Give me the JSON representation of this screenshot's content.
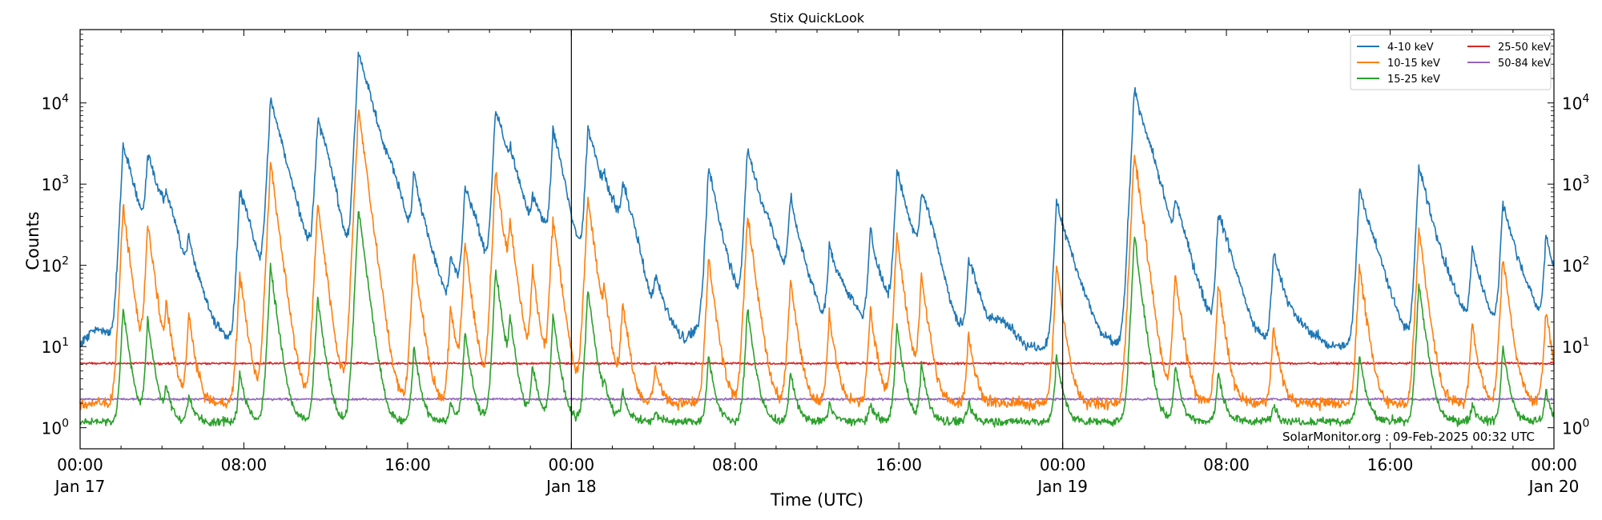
{
  "chart_data": {
    "type": "line",
    "title": "Stix QuickLook",
    "xlabel": "Time (UTC)",
    "ylabel": "Counts",
    "yscale": "log",
    "ylim": [
      0.55,
      80000
    ],
    "xlim_hours": [
      0,
      72
    ],
    "x_ticks": [
      {
        "hour": 0,
        "time": "00:00",
        "date": "Jan 17"
      },
      {
        "hour": 8,
        "time": "08:00",
        "date": ""
      },
      {
        "hour": 16,
        "time": "16:00",
        "date": ""
      },
      {
        "hour": 24,
        "time": "00:00",
        "date": "Jan 18"
      },
      {
        "hour": 32,
        "time": "08:00",
        "date": ""
      },
      {
        "hour": 40,
        "time": "16:00",
        "date": ""
      },
      {
        "hour": 48,
        "time": "00:00",
        "date": "Jan 19"
      },
      {
        "hour": 56,
        "time": "08:00",
        "date": ""
      },
      {
        "hour": 64,
        "time": "16:00",
        "date": ""
      },
      {
        "hour": 72,
        "time": "00:00",
        "date": "Jan 20"
      }
    ],
    "y_ticks": [
      {
        "value": 1,
        "base": "10",
        "exp": "0"
      },
      {
        "value": 10,
        "base": "10",
        "exp": "1"
      },
      {
        "value": 100,
        "base": "10",
        "exp": "2"
      },
      {
        "value": 1000,
        "base": "10",
        "exp": "3"
      },
      {
        "value": 10000,
        "base": "10",
        "exp": "4"
      }
    ],
    "day_boundaries_hours": [
      24,
      48
    ],
    "legend_position": "top-right",
    "grid": false,
    "credit": "SolarMonitor.org : 09-Feb-2025 00:32 UTC",
    "series": [
      {
        "name": "4-10 keV",
        "color": "#1f77b4",
        "baseline": 10
      },
      {
        "name": "10-15 keV",
        "color": "#ff7f0e",
        "baseline": 2.0
      },
      {
        "name": "15-25 keV",
        "color": "#2ca02c",
        "baseline": 1.2
      },
      {
        "name": "25-50 keV",
        "color": "#d62728",
        "baseline": 6.2
      },
      {
        "name": "50-84 keV",
        "color": "#9467bd",
        "baseline": 2.25
      }
    ],
    "flare_peaks": [
      {
        "hour": 2.1,
        "v410": 3200,
        "v1015": 520,
        "v1525": 30
      },
      {
        "hour": 3.3,
        "v410": 2300,
        "v1015": 330,
        "v1525": 22
      },
      {
        "hour": 4.2,
        "v410": 220,
        "v1015": 30,
        "v1525": 3
      },
      {
        "hour": 5.3,
        "v410": 150,
        "v1015": 25,
        "v1525": 2.5
      },
      {
        "hour": 7.8,
        "v410": 600,
        "v1015": 80,
        "v1525": 5
      },
      {
        "hour": 9.3,
        "v410": 11000,
        "v1015": 1900,
        "v1525": 100
      },
      {
        "hour": 11.6,
        "v410": 4300,
        "v1015": 600,
        "v1525": 40
      },
      {
        "hour": 13.6,
        "v410": 45000,
        "v1015": 8800,
        "v1525": 500
      },
      {
        "hour": 16.3,
        "v410": 1000,
        "v1015": 150,
        "v1525": 10
      },
      {
        "hour": 18.8,
        "v410": 700,
        "v1015": 180,
        "v1525": 15
      },
      {
        "hour": 18.1,
        "v410": 120,
        "v1015": 30,
        "v1525": 2
      },
      {
        "hour": 20.3,
        "v410": 8500,
        "v1015": 1500,
        "v1525": 90
      },
      {
        "hour": 21.0,
        "v410": 1200,
        "v1015": 300,
        "v1525": 20
      },
      {
        "hour": 22.1,
        "v410": 500,
        "v1015": 90,
        "v1525": 6
      },
      {
        "hour": 23.1,
        "v410": 2800,
        "v1015": 400,
        "v1525": 25
      },
      {
        "hour": 24.8,
        "v410": 5000,
        "v1015": 700,
        "v1525": 50
      },
      {
        "hour": 25.6,
        "v410": 550,
        "v1015": 40,
        "v1525": 3
      },
      {
        "hour": 26.5,
        "v410": 520,
        "v1015": 35,
        "v1525": 3
      },
      {
        "hour": 28.1,
        "v410": 55,
        "v1015": 6,
        "v1525": 1.5
      },
      {
        "hour": 30.7,
        "v410": 1000,
        "v1015": 120,
        "v1525": 8
      },
      {
        "hour": 32.6,
        "v410": 2700,
        "v1015": 420,
        "v1525": 30
      },
      {
        "hour": 34.7,
        "v410": 500,
        "v1015": 70,
        "v1525": 5
      },
      {
        "hour": 36.6,
        "v410": 170,
        "v1015": 25,
        "v1525": 2
      },
      {
        "hour": 38.6,
        "v410": 220,
        "v1015": 30,
        "v1525": 2
      },
      {
        "hour": 39.9,
        "v410": 1450,
        "v1015": 230,
        "v1525": 18
      },
      {
        "hour": 41.1,
        "v410": 500,
        "v1015": 80,
        "v1525": 6
      },
      {
        "hour": 43.4,
        "v410": 120,
        "v1015": 15,
        "v1525": 2
      },
      {
        "hour": 47.7,
        "v410": 600,
        "v1015": 100,
        "v1525": 8
      },
      {
        "hour": 51.5,
        "v410": 14500,
        "v1015": 2500,
        "v1525": 230
      },
      {
        "hour": 53.5,
        "v410": 500,
        "v1015": 80,
        "v1525": 6
      },
      {
        "hour": 55.6,
        "v410": 420,
        "v1015": 60,
        "v1525": 5
      },
      {
        "hour": 58.3,
        "v410": 140,
        "v1015": 18,
        "v1525": 2
      },
      {
        "hour": 62.5,
        "v410": 900,
        "v1015": 100,
        "v1525": 8
      },
      {
        "hour": 65.4,
        "v410": 1600,
        "v1015": 280,
        "v1525": 60
      },
      {
        "hour": 68.0,
        "v410": 140,
        "v1015": 20,
        "v1525": 2
      },
      {
        "hour": 69.5,
        "v410": 600,
        "v1015": 130,
        "v1525": 10
      },
      {
        "hour": 71.6,
        "v410": 190,
        "v1015": 30,
        "v1525": 3
      }
    ]
  }
}
